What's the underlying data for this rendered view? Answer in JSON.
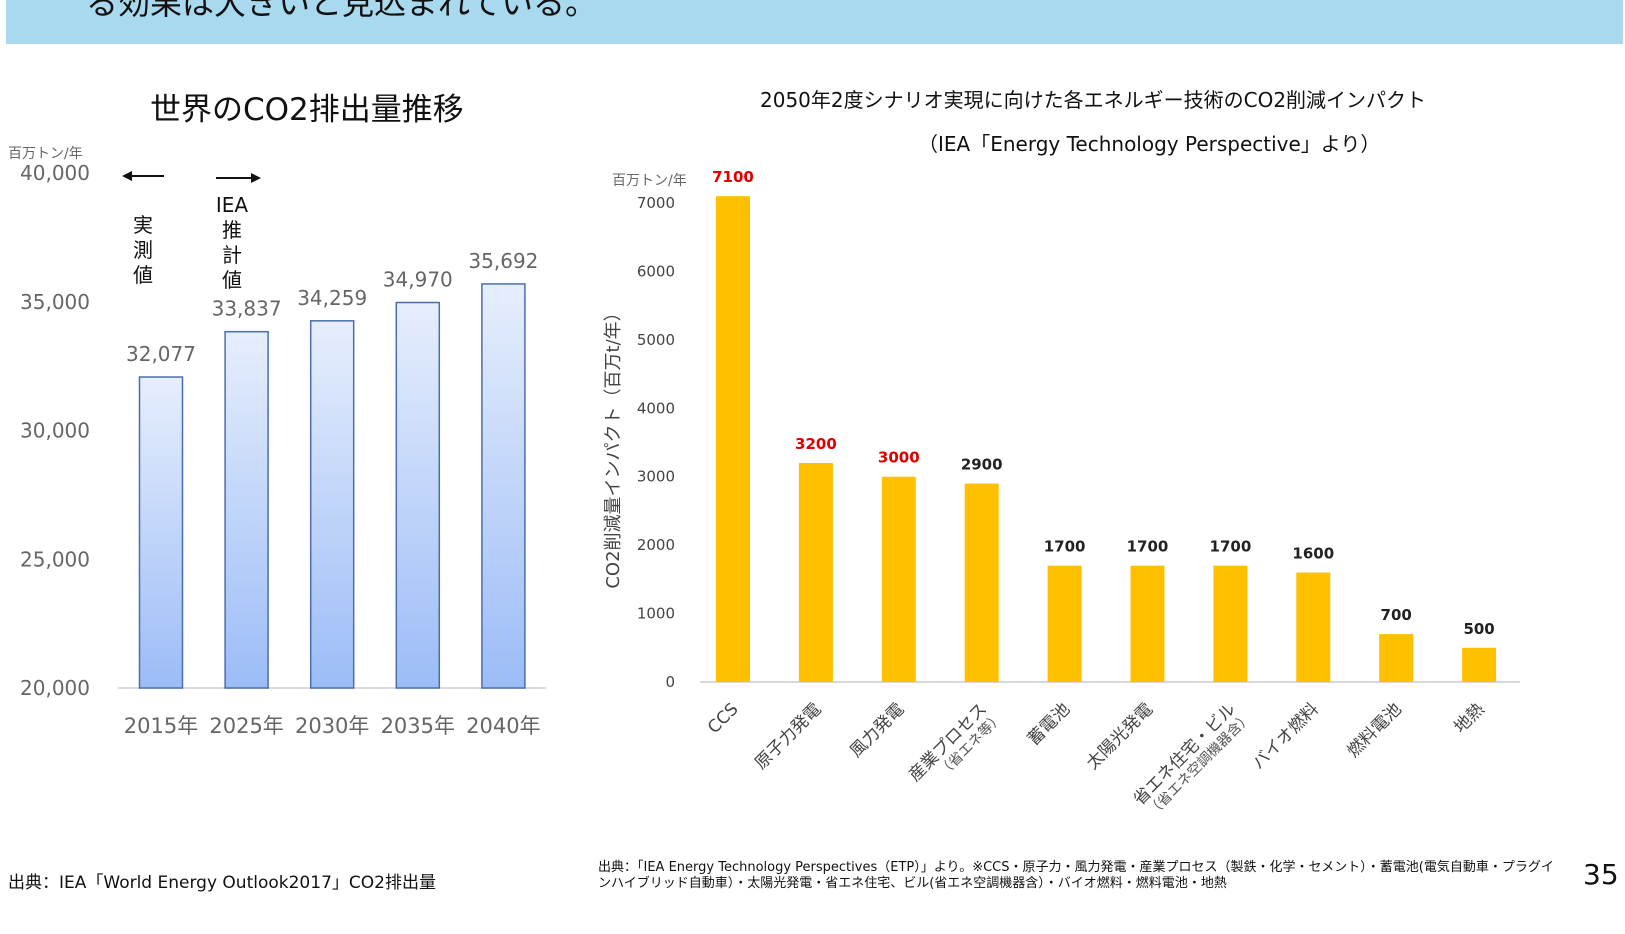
{
  "banner": {
    "text": "る効果は大きいと見込まれている。"
  },
  "left_chart": {
    "title": "世界のCO2排出量推移",
    "unit": "百万トン/年",
    "left_note": [
      "実",
      "測",
      "値"
    ],
    "right_note": [
      "IEA",
      "推",
      "計",
      "値"
    ]
  },
  "right_chart": {
    "title": "2050年2度シナリオ実現に向けた各エネルギー技術のCO2削減インパクト",
    "subtitle": "（IEA「Energy Technology Perspective」より）",
    "unit": "百万トン/年"
  },
  "sources": {
    "left": "出典：IEA「World Energy Outlook2017」CO2排出量",
    "right": "出典：「IEA Energy Technology Perspectives（ETP）」より。※CCS・原子力・風力発電・産業プロセス（製鉄・化学・セメント）・蓄電池(電気自動車・プラグインハイブリッド自動車）・太陽光発電・省エネ住宅、ビル(省エネ空調機器含）・バイオ燃料・燃料電池・地熱"
  },
  "page_number": "35",
  "colors": {
    "banner": "#a8d9ee",
    "bar_right": "#ffc000",
    "bar_left_top": "#e6eefc",
    "bar_left_bottom": "#9cbcf7",
    "bar_left_stroke": "#4a6fa8",
    "highlight_label": "#e00000"
  },
  "chart_data": [
    {
      "type": "bar",
      "title": "世界のCO2排出量推移",
      "ylabel": "百万トン/年",
      "categories": [
        "2015年",
        "2025年",
        "2030年",
        "2035年",
        "2040年"
      ],
      "values": [
        32077,
        33837,
        34259,
        34970,
        35692
      ],
      "value_labels": [
        "32,077",
        "33,837",
        "34,259",
        "34,970",
        "35,692"
      ],
      "ylim": [
        20000,
        40000
      ],
      "yticks": [
        "20,000",
        "25,000",
        "30,000",
        "35,000",
        "40,000"
      ],
      "ytick_values": [
        20000,
        25000,
        30000,
        35000,
        40000
      ]
    },
    {
      "type": "bar",
      "title": "2050年2度シナリオ実現に向けた各エネルギー技術のCO2削減インパクト",
      "ylabel": "CO2削減量インパクト（百万t/年）",
      "categories": [
        "CCS",
        "原子力発電",
        "風力発電",
        "産業プロセス",
        "蓄電池",
        "太陽光発電",
        "省エネ住宅・ビル",
        "バイオ燃料",
        "燃料電池",
        "地熱"
      ],
      "category_notes": [
        "",
        "",
        "",
        "（省エネ等）",
        "",
        "",
        "（省エネ空調機器含）",
        "",
        "",
        ""
      ],
      "values": [
        7100,
        3200,
        3000,
        2900,
        1700,
        1700,
        1700,
        1600,
        700,
        500
      ],
      "highlighted": [
        true,
        true,
        true,
        false,
        false,
        false,
        false,
        false,
        false,
        false
      ],
      "ylim": [
        0,
        7000
      ],
      "yticks": [
        "0",
        "1000",
        "2000",
        "3000",
        "4000",
        "5000",
        "6000",
        "7000"
      ],
      "ytick_values": [
        0,
        1000,
        2000,
        3000,
        4000,
        5000,
        6000,
        7000
      ]
    }
  ]
}
